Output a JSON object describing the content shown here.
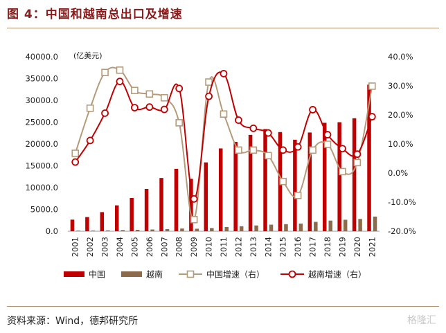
{
  "header": {
    "title": "图 4：中国和越南总出口及增速"
  },
  "footer": {
    "source": "资料来源：Wind，德邦研究所",
    "watermark": "格隆汇"
  },
  "chart_data": {
    "type": "bar",
    "unit_label": "(亿美元)",
    "categories": [
      "2001",
      "2002",
      "2003",
      "2004",
      "2005",
      "2006",
      "2007",
      "2008",
      "2009",
      "2010",
      "2011",
      "2012",
      "2013",
      "2014",
      "2015",
      "2016",
      "2017",
      "2018",
      "2019",
      "2020",
      "2021"
    ],
    "ylim_left": [
      0,
      40000
    ],
    "left_ticks": [
      "0.0",
      "5000.0",
      "10000.0",
      "15000.0",
      "20000.0",
      "25000.0",
      "30000.0",
      "35000.0",
      "40000.0"
    ],
    "ylim_right": [
      -20,
      40
    ],
    "right_ticks": [
      "-20.0%",
      "-10.0%",
      "0.0%",
      "10.0%",
      "20.0%",
      "30.0%",
      "40.0%"
    ],
    "series": [
      {
        "name": "中国",
        "kind": "bar",
        "axis": "left",
        "color": "#c00000",
        "values": [
          2661,
          3256,
          4382,
          5933,
          7620,
          9690,
          12200,
          14307,
          12016,
          15778,
          18984,
          20487,
          22090,
          23423,
          22735,
          20976,
          22634,
          24867,
          24995,
          25900,
          33600
        ]
      },
      {
        "name": "越南",
        "kind": "bar",
        "axis": "left",
        "color": "#8b6b4a",
        "values": [
          150,
          167,
          201,
          265,
          324,
          398,
          485,
          627,
          571,
          722,
          970,
          1146,
          1321,
          1503,
          1620,
          1765,
          2149,
          2435,
          2627,
          2815,
          3360
        ]
      },
      {
        "name": "中国增速（右）",
        "kind": "line",
        "axis": "right",
        "color": "#b59a7a",
        "values": [
          6.8,
          22.3,
          34.6,
          35.4,
          28.4,
          27.2,
          25.9,
          17.3,
          -16.0,
          31.3,
          20.3,
          7.9,
          7.9,
          6.0,
          -2.9,
          -7.7,
          7.9,
          9.9,
          0.5,
          3.6,
          29.9
        ]
      },
      {
        "name": "越南增速（右）",
        "kind": "line",
        "axis": "right",
        "color": "#c00000",
        "values": [
          3.8,
          11.2,
          20.6,
          31.5,
          22.5,
          22.7,
          21.9,
          29.1,
          -8.9,
          26.4,
          34.2,
          18.2,
          15.4,
          13.8,
          7.9,
          9.0,
          21.8,
          13.2,
          8.4,
          6.5,
          19.4
        ]
      }
    ]
  }
}
